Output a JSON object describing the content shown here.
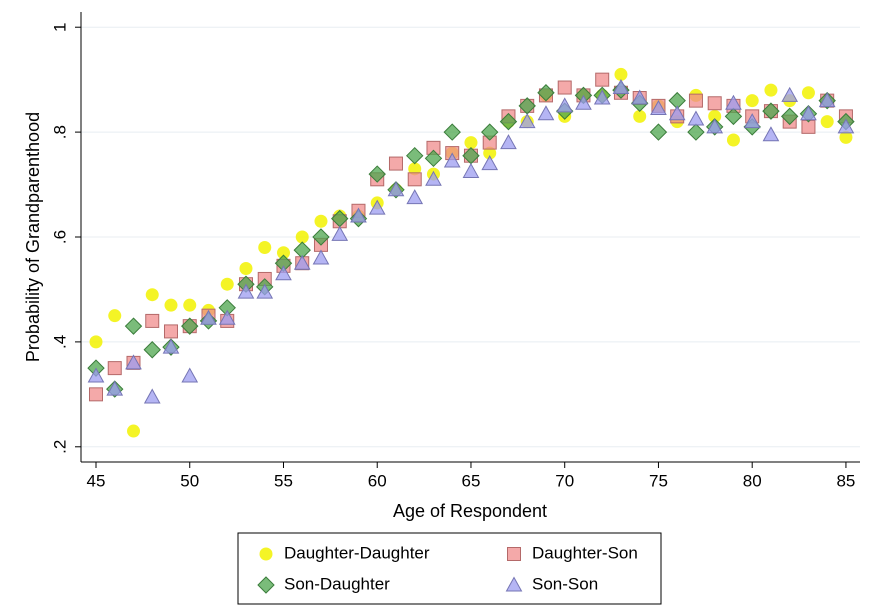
{
  "chart_data": {
    "type": "scatter",
    "x_label": "Age of Respondent",
    "y_label": "Probability of Grandparenthood",
    "x": [
      45,
      46,
      47,
      48,
      49,
      50,
      51,
      52,
      53,
      54,
      55,
      56,
      57,
      58,
      59,
      60,
      61,
      62,
      63,
      64,
      65,
      66,
      67,
      68,
      69,
      70,
      71,
      72,
      73,
      74,
      75,
      76,
      77,
      78,
      79,
      80,
      81,
      82,
      83,
      84,
      85
    ],
    "series": [
      {
        "name": "Daughter-Daughter",
        "color": "#f2f200",
        "marker": "circle",
        "values": [
          0.4,
          0.45,
          0.23,
          0.49,
          0.47,
          0.47,
          0.46,
          0.51,
          0.54,
          0.58,
          0.57,
          0.6,
          0.63,
          0.64,
          0.64,
          0.665,
          0.69,
          0.73,
          0.72,
          0.76,
          0.78,
          0.76,
          0.82,
          0.82,
          0.87,
          0.83,
          0.87,
          0.87,
          0.91,
          0.83,
          0.85,
          0.82,
          0.87,
          0.83,
          0.785,
          0.86,
          0.88,
          0.86,
          0.875,
          0.82,
          0.79
        ]
      },
      {
        "name": "Daughter-Son",
        "color": "#f08c8c",
        "marker": "square",
        "values": [
          0.3,
          0.35,
          0.36,
          0.44,
          0.42,
          0.43,
          0.45,
          0.44,
          0.51,
          0.52,
          0.545,
          0.55,
          0.585,
          0.63,
          0.65,
          0.71,
          0.74,
          0.71,
          0.77,
          0.76,
          0.755,
          0.78,
          0.83,
          0.85,
          0.87,
          0.885,
          0.87,
          0.9,
          0.875,
          0.865,
          0.85,
          0.83,
          0.86,
          0.855,
          0.85,
          0.83,
          0.84,
          0.82,
          0.81,
          0.86,
          0.83
        ]
      },
      {
        "name": "Son-Daughter",
        "color": "#4ea64e",
        "marker": "diamond",
        "values": [
          0.35,
          0.31,
          0.43,
          0.385,
          0.39,
          0.43,
          0.44,
          0.465,
          0.51,
          0.505,
          0.55,
          0.575,
          0.6,
          0.635,
          0.635,
          0.72,
          0.69,
          0.755,
          0.75,
          0.8,
          0.755,
          0.8,
          0.82,
          0.85,
          0.875,
          0.84,
          0.87,
          0.87,
          0.88,
          0.855,
          0.8,
          0.86,
          0.8,
          0.81,
          0.83,
          0.81,
          0.84,
          0.83,
          0.835,
          0.86,
          0.82
        ]
      },
      {
        "name": "Son-Son",
        "color": "#9c9cf0",
        "marker": "triangle",
        "values": [
          0.335,
          0.31,
          0.36,
          0.295,
          0.39,
          0.335,
          0.445,
          0.445,
          0.495,
          0.495,
          0.53,
          0.55,
          0.56,
          0.605,
          0.64,
          0.655,
          0.69,
          0.675,
          0.71,
          0.745,
          0.725,
          0.74,
          0.78,
          0.82,
          0.835,
          0.85,
          0.855,
          0.865,
          0.885,
          0.865,
          0.845,
          0.835,
          0.825,
          0.81,
          0.855,
          0.82,
          0.795,
          0.87,
          0.835,
          0.86,
          0.81
        ]
      }
    ],
    "xlim": [
      44.2,
      85.75
    ],
    "ylim": [
      0.171,
      1.029
    ],
    "xticks": [
      45,
      50,
      55,
      60,
      65,
      70,
      75,
      80,
      85
    ],
    "yticks": [
      {
        "value": 0.2,
        "label": ".2"
      },
      {
        "value": 0.4,
        "label": ".4"
      },
      {
        "value": 0.6,
        "label": ".6"
      },
      {
        "value": 0.8,
        "label": ".8"
      },
      1
    ],
    "grid": true,
    "legend": "bottom"
  }
}
